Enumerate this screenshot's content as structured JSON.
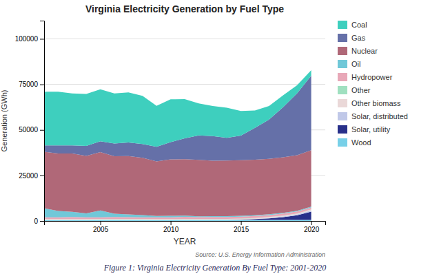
{
  "chart_data": {
    "type": "area",
    "stacked": true,
    "title": "Virginia Electricity Generation by Fuel Type",
    "xlabel": "YEAR",
    "ylabel": "Generation (GWh)",
    "x": [
      2001,
      2002,
      2003,
      2004,
      2005,
      2006,
      2007,
      2008,
      2009,
      2010,
      2011,
      2012,
      2013,
      2014,
      2015,
      2016,
      2017,
      2018,
      2019,
      2020
    ],
    "series": [
      {
        "name": "Wood",
        "color": "#78d0e8",
        "values": [
          500,
          500,
          500,
          500,
          600,
          600,
          600,
          600,
          500,
          500,
          600,
          600,
          600,
          600,
          600,
          600,
          600,
          600,
          600,
          600
        ]
      },
      {
        "name": "Solar, utility",
        "color": "#28308a",
        "values": [
          0,
          0,
          0,
          0,
          0,
          0,
          0,
          0,
          0,
          0,
          0,
          0,
          0,
          0,
          100,
          400,
          800,
          1500,
          2500,
          4500
        ]
      },
      {
        "name": "Solar, distributed",
        "color": "#c0c8e8",
        "values": [
          0,
          0,
          0,
          0,
          0,
          0,
          0,
          0,
          0,
          0,
          0,
          10,
          20,
          40,
          80,
          150,
          250,
          350,
          500,
          700
        ]
      },
      {
        "name": "Other biomass",
        "color": "#ead8d8",
        "values": [
          400,
          400,
          400,
          400,
          400,
          400,
          400,
          400,
          400,
          400,
          400,
          400,
          400,
          400,
          400,
          400,
          400,
          400,
          400,
          400
        ]
      },
      {
        "name": "Other",
        "color": "#a0e0c0",
        "values": [
          100,
          100,
          100,
          100,
          100,
          100,
          100,
          100,
          100,
          100,
          100,
          100,
          100,
          100,
          100,
          100,
          100,
          100,
          100,
          100
        ]
      },
      {
        "name": "Hydropower",
        "color": "#e8a8b8",
        "values": [
          1000,
          1000,
          1200,
          1000,
          900,
          1100,
          1000,
          900,
          1000,
          1000,
          1200,
          1000,
          1100,
          1000,
          1100,
          1100,
          1100,
          1100,
          1100,
          1100
        ]
      },
      {
        "name": "Oil",
        "color": "#70c8d8",
        "values": [
          5000,
          3500,
          2800,
          2200,
          3800,
          1800,
          1500,
          1200,
          700,
          800,
          600,
          400,
          400,
          500,
          500,
          400,
          400,
          400,
          400,
          400
        ]
      },
      {
        "name": "Nuclear",
        "color": "#b06878",
        "values": [
          31000,
          31500,
          32000,
          31500,
          32000,
          31500,
          32000,
          31500,
          30000,
          31000,
          31000,
          31000,
          30500,
          30500,
          30500,
          30500,
          30500,
          30500,
          30500,
          31000
        ]
      },
      {
        "name": "Gas",
        "color": "#6570a8",
        "values": [
          3500,
          4500,
          4500,
          5500,
          6000,
          7000,
          7500,
          7500,
          8000,
          9500,
          11500,
          13500,
          13500,
          12500,
          13500,
          17500,
          21500,
          27500,
          34000,
          41000
        ]
      },
      {
        "name": "Coal",
        "color": "#3ecfbe",
        "values": [
          29500,
          29500,
          28500,
          28500,
          28500,
          27500,
          27500,
          26500,
          22500,
          23500,
          21500,
          17500,
          16500,
          16500,
          13500,
          9500,
          7500,
          6500,
          4500,
          3000
        ]
      }
    ],
    "xlim": [
      2001,
      2021
    ],
    "xticks": [
      2005,
      2010,
      2015,
      2020
    ],
    "ylim": [
      0,
      110000
    ],
    "yticks": [
      0,
      25000,
      50000,
      75000,
      100000
    ],
    "grid": true,
    "legend": "right",
    "annotations": [
      "Source: U.S. Energy Information Administration",
      "Figure 1: Virginia Electricity Generation By Fuel Type: 2001-2020"
    ]
  }
}
